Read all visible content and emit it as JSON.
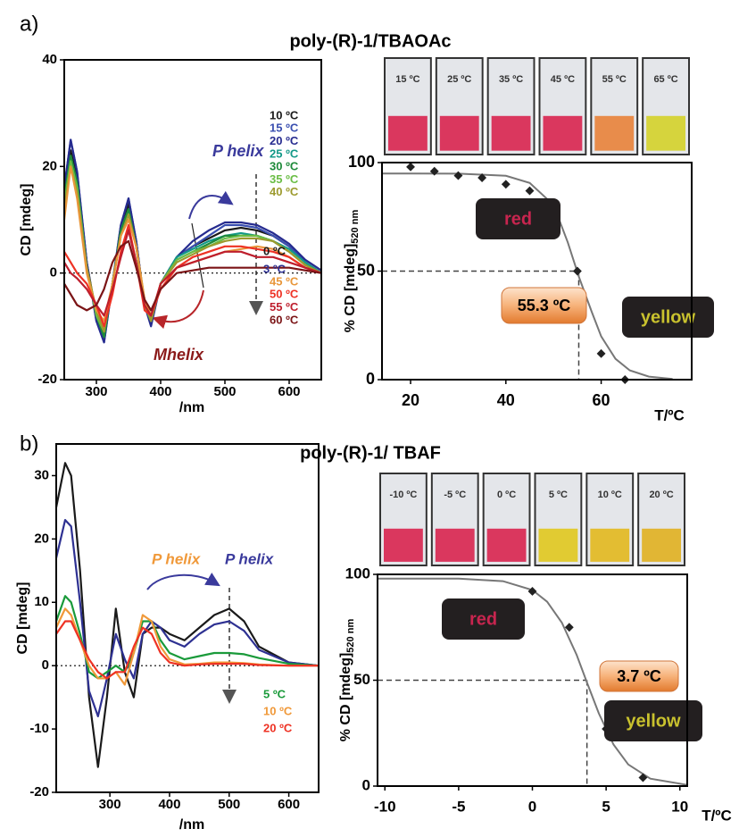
{
  "panels": [
    {
      "label": "a)",
      "title": "poly-(R)-1/TBAOAc"
    },
    {
      "label": "b)",
      "title": "poly-(R)-1/ TBAF"
    }
  ],
  "chart_data": [
    {
      "type": "line",
      "ylabel": "CD [mdeg]",
      "xlabel": "/nm",
      "x": [
        250,
        260,
        270,
        285,
        300,
        312,
        325,
        338,
        350,
        362,
        375,
        385,
        400,
        425,
        450,
        475,
        500,
        525,
        550,
        575,
        600,
        625,
        650
      ],
      "xlim": [
        250,
        650
      ],
      "xticks": [
        300,
        400,
        500,
        600
      ],
      "ylim": [
        -20,
        40
      ],
      "yticks": [
        -20,
        0,
        20,
        40
      ],
      "series": [
        {
          "name": "10 ºC",
          "color": "#1a1a1a",
          "values": [
            15,
            23,
            18,
            2,
            -8,
            -12,
            -2,
            8,
            13,
            6,
            -6,
            -9,
            -2,
            3,
            5,
            6.5,
            8,
            8.5,
            8,
            7,
            5,
            2,
            0
          ]
        },
        {
          "name": "15 ºC",
          "color": "#3a4fb0",
          "values": [
            16,
            25,
            19,
            2,
            -9,
            -13,
            -2,
            9,
            14,
            6,
            -6,
            -9,
            -2,
            3,
            5,
            7,
            9,
            9,
            8.5,
            7,
            5,
            2,
            0
          ]
        },
        {
          "name": "20 ºC",
          "color": "#262b8f",
          "values": [
            16,
            25,
            19,
            2,
            -9,
            -13,
            -2,
            9,
            14,
            6,
            -6,
            -10,
            -2,
            3,
            6,
            8,
            9.5,
            9.5,
            9,
            7.5,
            5.5,
            2.5,
            0.5
          ]
        },
        {
          "name": "25 ºC",
          "color": "#139988",
          "values": [
            14,
            22,
            17,
            1,
            -8,
            -12,
            -2,
            8,
            12,
            5,
            -6,
            -9,
            -2,
            3,
            4.5,
            6,
            7,
            7.5,
            7,
            6,
            4.5,
            2,
            0
          ]
        },
        {
          "name": "30 ºC",
          "color": "#1e8a3a",
          "values": [
            14,
            22,
            17,
            1,
            -8,
            -12,
            -2,
            8,
            12,
            5,
            -6,
            -9,
            -2,
            2.5,
            4,
            5.5,
            7,
            7,
            7,
            6,
            4,
            1.5,
            0
          ]
        },
        {
          "name": "35 ºC",
          "color": "#6abd45",
          "values": [
            13,
            21,
            16,
            1,
            -8,
            -11,
            -2,
            7,
            11,
            5,
            -6,
            -9,
            -2,
            2.5,
            4,
            5,
            6.5,
            7,
            7,
            6,
            4,
            1.5,
            0
          ]
        },
        {
          "name": "40 ºC",
          "color": "#9c9a2e",
          "values": [
            12,
            20,
            15,
            1,
            -7,
            -11,
            -2,
            7,
            11,
            5,
            -5,
            -9,
            -2,
            2,
            3.5,
            5,
            6,
            6.5,
            6.5,
            6,
            4,
            1.5,
            0
          ]
        },
        {
          "name": "45 ºC",
          "color": "#e8963a",
          "values": [
            10,
            20,
            14,
            0,
            -7,
            -9,
            -2,
            7,
            10,
            5,
            -5,
            -8,
            -2,
            1,
            2,
            3,
            4,
            4.5,
            5,
            4.5,
            3,
            1,
            0
          ]
        },
        {
          "name": "50 ºC",
          "color": "#ee3224",
          "values": [
            4,
            2,
            0,
            -2,
            -6,
            -10,
            -4,
            4,
            9,
            2,
            -7,
            -8,
            -3,
            1,
            3,
            4,
            5,
            5,
            4.5,
            4,
            3,
            1,
            0
          ]
        },
        {
          "name": "55 ºC",
          "color": "#be1e2d",
          "values": [
            2,
            0,
            -1,
            -3,
            -6,
            -8,
            -3,
            3,
            8,
            2,
            -6,
            -8,
            -2,
            1,
            2,
            3,
            4,
            4,
            3,
            3,
            2,
            1,
            0
          ]
        },
        {
          "name": "60 ºC",
          "color": "#7b1416",
          "values": [
            -2,
            -4,
            -6,
            -7,
            -6,
            -3,
            2,
            5,
            6,
            1,
            -5,
            -7,
            -3,
            0,
            0.5,
            1,
            1,
            1,
            1,
            1,
            1,
            0.5,
            0
          ]
        }
      ],
      "annotations": [
        {
          "text": "P helix",
          "color": "#3a3a9c"
        },
        {
          "text": "Mhelix",
          "color": "#8b1a1a"
        }
      ]
    },
    {
      "type": "scatter",
      "ylabel": "% CD [mdeg]",
      "ylabel_sub": "520 nm",
      "xlabel": "T/ºC",
      "x": [
        20,
        25,
        30,
        35,
        40,
        45,
        55,
        60,
        65
      ],
      "values": [
        98,
        96,
        94,
        93,
        90,
        87,
        50,
        12,
        0
      ],
      "color": "#222222",
      "xlim": [
        14,
        79
      ],
      "xticks": [
        20,
        40,
        60
      ],
      "ylim": [
        0,
        100
      ],
      "yticks": [
        0,
        50,
        100
      ],
      "fit": {
        "x": [
          14,
          20,
          30,
          40,
          45,
          50,
          53,
          55.3,
          58,
          60,
          63,
          66,
          70,
          75
        ],
        "values": [
          95,
          95,
          94.9,
          93.9,
          90.6,
          80.5,
          63.2,
          47.5,
          31.3,
          19.9,
          9.6,
          4.3,
          1.4,
          0.34
        ],
        "color": "#777777"
      },
      "midpoint": {
        "x": 55.3,
        "y": 50,
        "label": "55.3 ºC"
      },
      "states": [
        {
          "text": "red",
          "color": "#c8254f"
        },
        {
          "text": "yellow",
          "color": "#c9c22e"
        }
      ],
      "vials": {
        "labels": [
          "15 ºC",
          "25 ºC",
          "35 ºC",
          "45 ºC",
          "55 ºC",
          "65 ºC"
        ],
        "colors": [
          "#d8234f",
          "#d8234f",
          "#d8234f",
          "#d8234f",
          "#e8823a",
          "#d4d22a"
        ]
      }
    },
    {
      "type": "line",
      "ylabel": "CD [mdeg]",
      "xlabel": "/nm",
      "x": [
        210,
        225,
        235,
        250,
        265,
        280,
        295,
        310,
        325,
        340,
        355,
        370,
        385,
        400,
        425,
        450,
        475,
        500,
        525,
        550,
        600,
        650
      ],
      "xlim": [
        210,
        650
      ],
      "xticks": [
        300,
        400,
        500,
        600
      ],
      "ylim": [
        -20,
        35
      ],
      "yticks": [
        -20,
        -10,
        0,
        10,
        20,
        30
      ],
      "series": [
        {
          "name": "0 ºC",
          "color": "#1a1a1a",
          "values": [
            25,
            32,
            30,
            15,
            -5,
            -16,
            -5,
            9,
            -1,
            -5,
            5,
            6,
            6,
            5,
            4,
            6,
            8,
            9,
            7,
            3,
            0.5,
            0
          ]
        },
        {
          "name": "3 ºC",
          "color": "#2e3192",
          "values": [
            17,
            23,
            22,
            10,
            -4,
            -8,
            -2,
            5,
            1,
            -2,
            5,
            7,
            6,
            4,
            3,
            5,
            6.5,
            7,
            5.5,
            2.5,
            0.5,
            0
          ]
        },
        {
          "name": "5 ºC",
          "color": "#1a9a3a",
          "values": [
            7,
            11,
            10,
            5,
            -1,
            -2,
            -1,
            0,
            -1,
            2,
            7,
            7,
            4,
            2,
            1,
            1.5,
            2,
            2,
            1.8,
            1.2,
            0.3,
            0
          ]
        },
        {
          "name": "10 ºC",
          "color": "#f0993a",
          "values": [
            6,
            9,
            8,
            4,
            0,
            -2,
            -2,
            -1,
            -3,
            2,
            8,
            7,
            3,
            1,
            0.2,
            0.3,
            0.5,
            0.5,
            0.4,
            0.2,
            0,
            0
          ]
        },
        {
          "name": "20 ºC",
          "color": "#ee3224",
          "values": [
            5,
            7,
            7,
            4,
            1,
            -1,
            -2,
            -1,
            -1,
            3,
            6,
            5,
            2,
            0.5,
            0,
            0.2,
            0.3,
            0.3,
            0.3,
            0.1,
            0,
            0
          ]
        }
      ],
      "annotations": [
        {
          "text": "P helix",
          "color": "#f0993a"
        },
        {
          "text": "P helix",
          "color": "#3a3a9c"
        }
      ]
    },
    {
      "type": "scatter",
      "ylabel": "% CD [mdeg]",
      "ylabel_sub": "520 nm",
      "xlabel": "T/ºC",
      "x": [
        0,
        2.5,
        5,
        7.5
      ],
      "values": [
        92,
        75,
        27,
        4
      ],
      "color": "#222222",
      "xlim": [
        -10.5,
        10.5
      ],
      "xticks": [
        -10,
        -5,
        0,
        5,
        10
      ],
      "ylim": [
        0,
        100
      ],
      "yticks": [
        0,
        50,
        100
      ],
      "fit": {
        "x": [
          -10.5,
          -5,
          -2,
          0,
          1,
          2,
          3,
          3.7,
          4.5,
          5.5,
          6.5,
          8,
          10.5
        ],
        "values": [
          98,
          98,
          96.8,
          92.6,
          87.1,
          77.2,
          62,
          49,
          34.4,
          19.6,
          10.2,
          3.5,
          0.53
        ],
        "color": "#777777"
      },
      "midpoint": {
        "x": 3.7,
        "y": 50,
        "label": "3.7 ºC"
      },
      "states": [
        {
          "text": "red",
          "color": "#c8254f"
        },
        {
          "text": "yellow",
          "color": "#c9c22e"
        }
      ],
      "vials": {
        "labels": [
          "-10 ºC",
          "-5 ºC",
          "0 ºC",
          "5 ºC",
          "10 ºC",
          "20 ºC"
        ],
        "colors": [
          "#d8234f",
          "#d8234f",
          "#d8234f",
          "#e0c81e",
          "#e2b81e",
          "#e0b020"
        ]
      }
    }
  ]
}
